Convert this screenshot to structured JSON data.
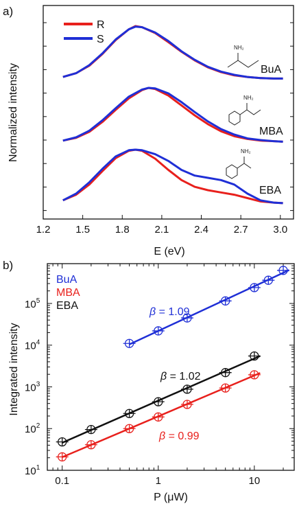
{
  "chart_data": [
    {
      "panel_label": "a)",
      "type": "line",
      "xlabel": "E (eV)",
      "ylabel": "Normalized intensity",
      "xlim": [
        1.2,
        3.1
      ],
      "x_ticks": [
        "1.2",
        "1.5",
        "1.8",
        "2.1",
        "2.4",
        "2.7",
        "3.0"
      ],
      "x_tick_values": [
        1.2,
        1.5,
        1.8,
        2.1,
        2.4,
        2.7,
        3.0
      ],
      "legend": {
        "placement": "top-left",
        "entries": [
          {
            "name": "R",
            "color": "#e8201c"
          },
          {
            "name": "S",
            "color": "#1f2fd6"
          }
        ]
      },
      "stacks": [
        {
          "label": "BuA",
          "molecule_label": "NH₂",
          "x": [
            1.35,
            1.45,
            1.55,
            1.65,
            1.75,
            1.85,
            1.9,
            1.95,
            2.05,
            2.15,
            2.25,
            2.35,
            2.45,
            2.55,
            2.65,
            2.75,
            2.85,
            2.95,
            3.02
          ],
          "series": [
            {
              "name": "R",
              "color": "#e8201c",
              "values": [
                0.05,
                0.12,
                0.26,
                0.48,
                0.74,
                0.94,
                1.0,
                0.98,
                0.87,
                0.7,
                0.52,
                0.36,
                0.23,
                0.14,
                0.08,
                0.05,
                0.03,
                0.02,
                0.02
              ]
            },
            {
              "name": "S",
              "color": "#1f2fd6",
              "values": [
                0.05,
                0.12,
                0.27,
                0.49,
                0.75,
                0.94,
                0.99,
                0.98,
                0.88,
                0.72,
                0.53,
                0.37,
                0.24,
                0.15,
                0.09,
                0.05,
                0.03,
                0.02,
                0.02
              ]
            }
          ]
        },
        {
          "label": "MBA",
          "molecule_label": "NH₂",
          "x": [
            1.35,
            1.45,
            1.55,
            1.65,
            1.75,
            1.85,
            1.95,
            2.0,
            2.05,
            2.15,
            2.25,
            2.35,
            2.45,
            2.55,
            2.65,
            2.75,
            2.85,
            2.95,
            3.02
          ],
          "series": [
            {
              "name": "R",
              "color": "#e8201c",
              "values": [
                0.04,
                0.09,
                0.2,
                0.38,
                0.6,
                0.81,
                0.96,
                1.0,
                0.98,
                0.86,
                0.68,
                0.5,
                0.34,
                0.21,
                0.12,
                0.07,
                0.04,
                0.03,
                0.02
              ]
            },
            {
              "name": "S",
              "color": "#1f2fd6",
              "values": [
                0.04,
                0.1,
                0.22,
                0.41,
                0.63,
                0.84,
                0.97,
                1.0,
                0.99,
                0.9,
                0.74,
                0.56,
                0.39,
                0.25,
                0.15,
                0.08,
                0.05,
                0.03,
                0.02
              ]
            }
          ]
        },
        {
          "label": "EBA",
          "molecule_label": "NH₂",
          "x": [
            1.35,
            1.45,
            1.55,
            1.65,
            1.75,
            1.85,
            1.9,
            1.95,
            2.05,
            2.15,
            2.25,
            2.35,
            2.45,
            2.55,
            2.65,
            2.75,
            2.85,
            2.95,
            3.02
          ],
          "series": [
            {
              "name": "R",
              "color": "#e8201c",
              "values": [
                0.1,
                0.2,
                0.38,
                0.62,
                0.85,
                0.98,
                1.0,
                0.98,
                0.84,
                0.64,
                0.46,
                0.34,
                0.28,
                0.24,
                0.2,
                0.14,
                0.08,
                0.06,
                0.05
              ]
            },
            {
              "name": "S",
              "color": "#1f2fd6",
              "values": [
                0.1,
                0.22,
                0.42,
                0.66,
                0.88,
                0.99,
                1.0,
                0.99,
                0.92,
                0.8,
                0.64,
                0.54,
                0.5,
                0.46,
                0.38,
                0.22,
                0.1,
                0.06,
                0.05
              ]
            }
          ]
        }
      ]
    },
    {
      "panel_label": "b)",
      "type": "scatter",
      "xlabel": "P (μW)",
      "ylabel": "Integrated intensity",
      "x_scale": "log",
      "y_scale": "log",
      "xlim": [
        0.07,
        26
      ],
      "ylim": [
        10,
        900000
      ],
      "x_ticks": [
        "0.1",
        "1",
        "10"
      ],
      "x_tick_values": [
        0.1,
        1,
        10
      ],
      "y_ticks": [
        {
          "base": "10",
          "exp": "1",
          "value": 10
        },
        {
          "base": "10",
          "exp": "2",
          "value": 100
        },
        {
          "base": "10",
          "exp": "3",
          "value": 1000
        },
        {
          "base": "10",
          "exp": "4",
          "value": 10000
        },
        {
          "base": "10",
          "exp": "5",
          "value": 100000
        }
      ],
      "legend": {
        "placement": "top-left",
        "entries": [
          {
            "name": "BuA",
            "color": "#1f2fd6"
          },
          {
            "name": "MBA",
            "color": "#e8201c"
          },
          {
            "name": "EBA",
            "color": "#111111"
          }
        ]
      },
      "series": [
        {
          "name": "BuA",
          "color": "#1f2fd6",
          "beta_symbol": "β",
          "beta_text": " = 1.09",
          "x": [
            0.5,
            1,
            2,
            5,
            10,
            14,
            20
          ],
          "y": [
            11000,
            22000,
            45000,
            115000,
            240000,
            360000,
            620000
          ]
        },
        {
          "name": "MBA",
          "color": "#e8201c",
          "beta_symbol": "β",
          "beta_text": " = 0.99",
          "x": [
            0.1,
            0.2,
            0.5,
            1,
            2,
            5,
            10
          ],
          "y": [
            21,
            41,
            100,
            190,
            380,
            940,
            1950
          ]
        },
        {
          "name": "EBA",
          "color": "#111111",
          "beta_symbol": "β",
          "beta_text": " = 1.02",
          "x": [
            0.1,
            0.2,
            0.5,
            1,
            2,
            5,
            10
          ],
          "y": [
            48,
            95,
            230,
            440,
            880,
            2200,
            5500
          ]
        }
      ]
    }
  ]
}
